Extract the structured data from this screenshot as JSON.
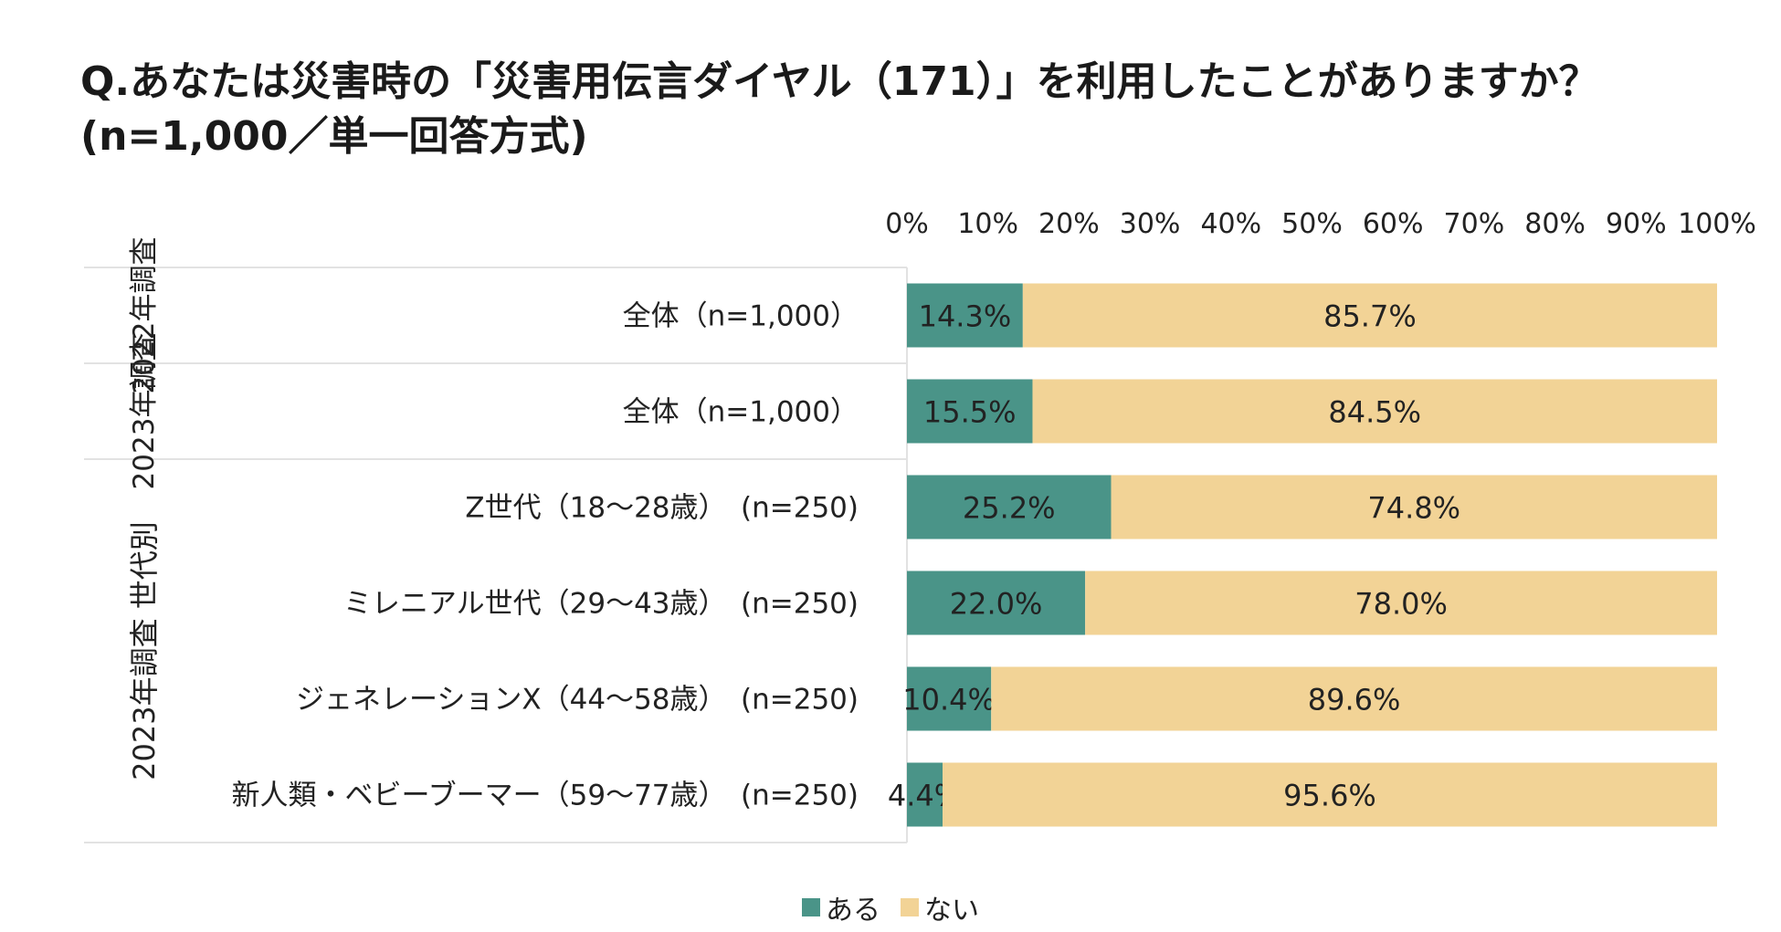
{
  "title": {
    "line1": "Q.あなたは災害時の「災害用伝言ダイヤル（171）」を利用したことがありますか？",
    "line2": "(n=1,000／単一回答方式)"
  },
  "colors": {
    "aru": "#4a9488",
    "nai": "#f2d396"
  },
  "chart_data": {
    "type": "bar",
    "orientation": "horizontal-stacked-100",
    "xlim": [
      0,
      100
    ],
    "x_ticks": [
      "0%",
      "10%",
      "20%",
      "30%",
      "40%",
      "50%",
      "60%",
      "70%",
      "80%",
      "90%",
      "100%"
    ],
    "groups": [
      {
        "label": "2022年調査",
        "rows": [
          0
        ]
      },
      {
        "label": "2023年調査",
        "rows": [
          1
        ]
      },
      {
        "label": "2023年調査 世代別",
        "rows": [
          2,
          3,
          4,
          5
        ]
      }
    ],
    "categories": [
      "全体（n=1,000）",
      "全体（n=1,000）",
      "Z世代（18～28歳）　(n=250)",
      "ミレニアル世代（29～43歳）　(n=250)",
      "ジェネレーションX（44～58歳）　(n=250)",
      "新人類・ベビーブーマー（59～77歳）　(n=250)"
    ],
    "series": [
      {
        "name": "ある",
        "values": [
          14.3,
          15.5,
          25.2,
          22.0,
          10.4,
          4.4
        ],
        "labels": [
          "14.3%",
          "15.5%",
          "25.2%",
          "22.0%",
          "10.4%",
          "4.4%"
        ]
      },
      {
        "name": "ない",
        "values": [
          85.7,
          84.5,
          74.8,
          78.0,
          89.6,
          95.6
        ],
        "labels": [
          "85.7%",
          "84.5%",
          "74.8%",
          "78.0%",
          "89.6%",
          "95.6%"
        ]
      }
    ],
    "legend_position": "bottom",
    "grid": false
  }
}
